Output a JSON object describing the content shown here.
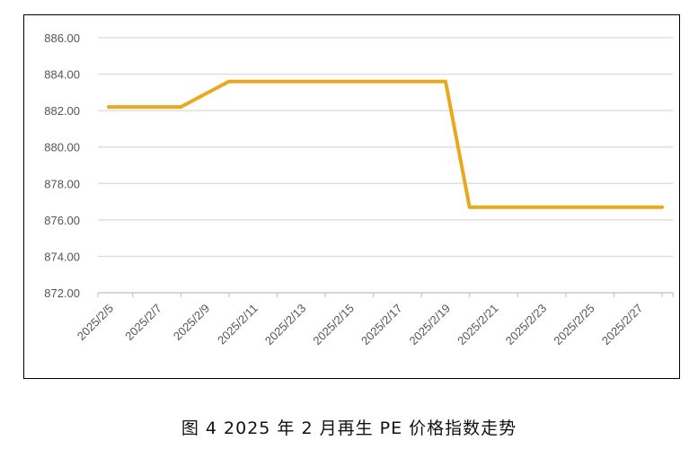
{
  "caption": "图 4  2025 年 2 月再生 PE 价格指数走势",
  "chart_data": {
    "type": "line",
    "title": "",
    "xlabel": "",
    "ylabel": "",
    "ylim": [
      872,
      886
    ],
    "yticks": [
      "872.00",
      "874.00",
      "876.00",
      "878.00",
      "880.00",
      "882.00",
      "884.00",
      "886.00"
    ],
    "x": [
      "2025/2/5",
      "2025/2/6",
      "2025/2/7",
      "2025/2/8",
      "2025/2/9",
      "2025/2/10",
      "2025/2/11",
      "2025/2/12",
      "2025/2/13",
      "2025/2/14",
      "2025/2/15",
      "2025/2/16",
      "2025/2/17",
      "2025/2/18",
      "2025/2/19",
      "2025/2/20",
      "2025/2/21",
      "2025/2/22",
      "2025/2/23",
      "2025/2/24",
      "2025/2/25",
      "2025/2/26",
      "2025/2/27",
      "2025/2/28"
    ],
    "xtick_labels": [
      "2025/2/5",
      "2025/2/7",
      "2025/2/9",
      "2025/2/11",
      "2025/2/13",
      "2025/2/15",
      "2025/2/17",
      "2025/2/19",
      "2025/2/21",
      "2025/2/23",
      "2025/2/25",
      "2025/2/27"
    ],
    "series": [
      {
        "color": "#E8A820",
        "points": [
          {
            "x": "2025/2/5",
            "y": 882.2
          },
          {
            "x": "2025/2/8",
            "y": 882.2
          },
          {
            "x": "2025/2/10",
            "y": 883.6
          },
          {
            "x": "2025/2/19",
            "y": 883.6
          },
          {
            "x": "2025/2/20",
            "y": 876.7
          },
          {
            "x": "2025/2/28",
            "y": 876.7
          }
        ]
      }
    ],
    "grid": true,
    "legend": "none"
  }
}
